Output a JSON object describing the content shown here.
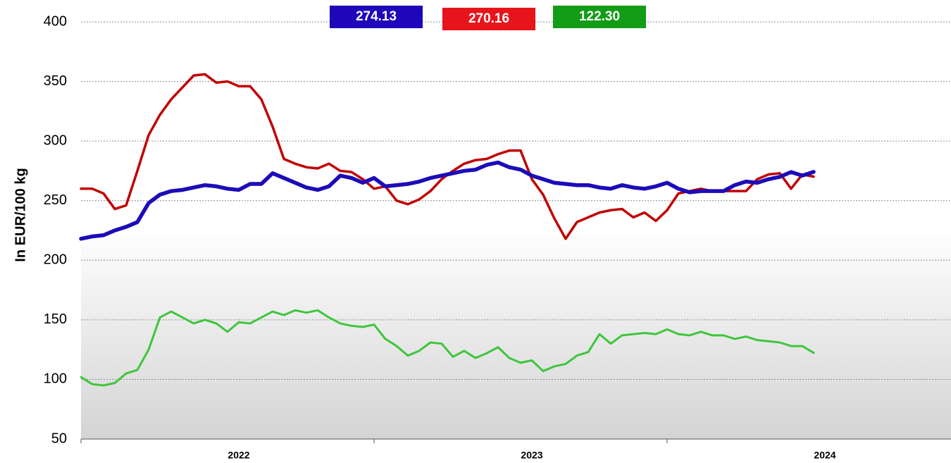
{
  "chart_data": {
    "type": "line",
    "y_label": "In EUR/100 kg",
    "categories": [
      null,
      null,
      null,
      null,
      null,
      null,
      null,
      null,
      null,
      null,
      null,
      null,
      null,
      null,
      "2022",
      null,
      null,
      null,
      null,
      null,
      null,
      null,
      null,
      null,
      null,
      null,
      null,
      null,
      null,
      null,
      null,
      null,
      null,
      null,
      null,
      null,
      null,
      null,
      null,
      null,
      "2023",
      null,
      null,
      null,
      null,
      null,
      null,
      null,
      null,
      null,
      null,
      null,
      null,
      null,
      null,
      null,
      null,
      null,
      null,
      null,
      null,
      null,
      null,
      null,
      null,
      null,
      "2024",
      null,
      null,
      null,
      null,
      null,
      null,
      null,
      null,
      null,
      null,
      null
    ],
    "ylim": [
      50,
      400
    ],
    "yticks": [
      50,
      100,
      150,
      200,
      250,
      300,
      350,
      400
    ],
    "grid": true,
    "series": [
      {
        "color": "#1c0cb8",
        "label_color": "#1f06b8",
        "width": 5.5,
        "values": [
          218,
          220,
          221,
          225,
          228,
          232,
          248,
          255,
          258,
          259,
          261,
          263,
          262,
          260,
          259,
          264,
          264,
          273,
          269,
          265,
          261,
          259,
          262,
          271,
          269,
          265,
          269,
          262,
          263,
          264,
          266,
          269,
          271,
          273,
          275,
          276,
          280,
          282,
          278,
          276,
          271,
          268,
          265,
          264,
          263,
          263,
          261,
          260,
          263,
          261,
          260,
          262,
          265,
          260,
          257,
          258,
          258,
          258,
          263,
          266,
          265,
          268,
          270,
          274,
          271,
          274.13,
          null,
          null,
          null,
          null,
          null,
          null,
          null,
          null,
          null,
          null,
          null,
          null
        ],
        "value_labels": {
          "65": "274.13"
        }
      },
      {
        "color": "#c00000",
        "label_color": "#e8141b",
        "width": 3.5,
        "values": [
          260,
          260,
          256,
          243,
          246,
          275,
          305,
          322,
          335,
          345,
          355,
          356,
          349,
          350,
          346,
          346,
          335,
          312,
          285,
          281,
          278,
          277,
          281,
          275,
          274,
          268,
          260,
          262,
          250,
          247,
          251,
          258,
          268,
          275,
          281,
          284,
          285,
          289,
          292,
          292,
          268,
          255,
          235,
          218,
          232,
          236,
          240,
          242,
          243,
          236,
          240,
          233,
          242,
          256,
          258,
          260,
          258,
          258,
          258,
          258,
          268,
          272,
          273,
          260,
          272,
          270.16,
          null,
          null,
          null,
          null,
          null,
          null,
          null,
          null,
          null,
          null,
          null,
          null
        ],
        "value_labels": {
          "65": "270.16"
        }
      },
      {
        "color": "#3ec63b",
        "label_color": "#139c16",
        "width": 3,
        "values": [
          102,
          96,
          95,
          97,
          105,
          108,
          125,
          152,
          157,
          152,
          147,
          150,
          147,
          140,
          148,
          147,
          152,
          157,
          154,
          158,
          156,
          158,
          152,
          147,
          145,
          144,
          146,
          134,
          128,
          120,
          124,
          131,
          130,
          119,
          124,
          118,
          122,
          127,
          118,
          114,
          116,
          107,
          111,
          113,
          120,
          123,
          138,
          130,
          137,
          138,
          139,
          138,
          142,
          138,
          137,
          140,
          137,
          137,
          134,
          136,
          133,
          132,
          131,
          128,
          128,
          122.3,
          null,
          null,
          null,
          null,
          null,
          null,
          null,
          null,
          null,
          null,
          null,
          null
        ],
        "value_labels": {
          "65": "122.30"
        }
      }
    ]
  }
}
